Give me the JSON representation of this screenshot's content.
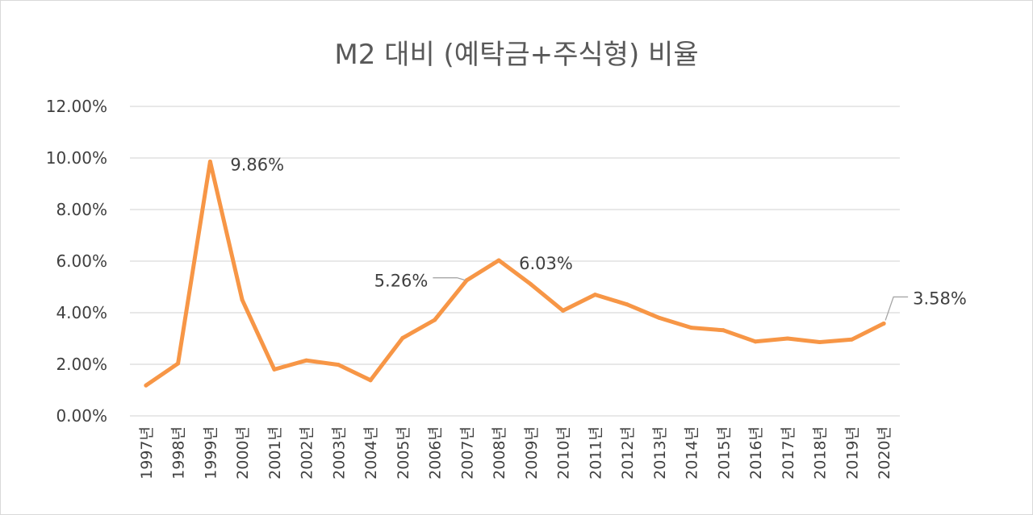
{
  "chart_data": {
    "type": "line",
    "title": "M2 대비 (예탁금+주식형) 비율",
    "xlabel": "",
    "ylabel": "",
    "ylim": [
      0,
      12
    ],
    "yticks": [
      0,
      2,
      4,
      6,
      8,
      10,
      12
    ],
    "ytick_labels": [
      "0.00%",
      "2.00%",
      "4.00%",
      "6.00%",
      "8.00%",
      "10.00%",
      "12.00%"
    ],
    "grid": true,
    "legend": "none",
    "categories": [
      "1997년",
      "1998년",
      "1999년",
      "2000년",
      "2001년",
      "2002년",
      "2003년",
      "2004년",
      "2005년",
      "2006년",
      "2007년",
      "2008년",
      "2009년",
      "2010년",
      "2011년",
      "2012년",
      "2013년",
      "2014년",
      "2015년",
      "2016년",
      "2017년",
      "2018년",
      "2019년",
      "2020년"
    ],
    "series": [
      {
        "name": "M2 대비 (예탁금+주식형) 비율",
        "color": "#f79646",
        "values": [
          1.18,
          2.03,
          9.86,
          4.5,
          1.8,
          2.15,
          1.98,
          1.38,
          3.02,
          3.72,
          5.26,
          6.03,
          5.1,
          4.08,
          4.7,
          4.32,
          3.8,
          3.42,
          3.32,
          2.88,
          3.0,
          2.86,
          2.96,
          3.58
        ]
      }
    ],
    "data_labels": [
      {
        "index": 2,
        "text": "9.86%",
        "anchor": "right"
      },
      {
        "index": 10,
        "text": "5.26%",
        "anchor": "left-leader"
      },
      {
        "index": 11,
        "text": "6.03%",
        "anchor": "right"
      },
      {
        "index": 23,
        "text": "3.58%",
        "anchor": "right-leader"
      }
    ]
  }
}
